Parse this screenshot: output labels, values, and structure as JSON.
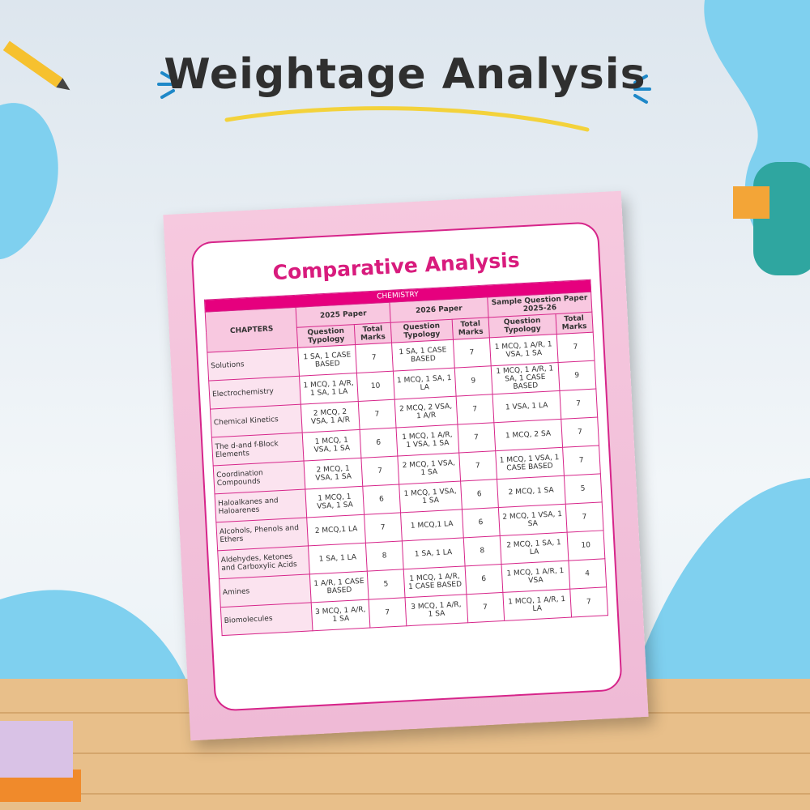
{
  "header": {
    "title": "Weightage Analysis"
  },
  "card": {
    "title": "Comparative Analysis"
  },
  "table": {
    "subject": "CHEMISTRY",
    "chapters_header": "CHAPTERS",
    "groups": [
      "2025 Paper",
      "2026 Paper",
      "Sample Question Paper 2025-26"
    ],
    "sub_headers": [
      "Question Typology",
      "Total Marks",
      "Question Typology",
      "Total Marks",
      "Question Typology",
      "Total Marks"
    ],
    "rows": [
      [
        "Solutions",
        "1 SA, 1 CASE BASED",
        7,
        "1 SA, 1 CASE BASED",
        7,
        "1 MCQ, 1 A/R, 1 VSA, 1 SA",
        7
      ],
      [
        "Electrochemistry",
        "1 MCQ, 1 A/R, 1 SA, 1 LA",
        10,
        "1 MCQ, 1 SA, 1 LA",
        9,
        "1 MCQ, 1 A/R, 1 SA, 1 CASE BASED",
        9
      ],
      [
        "Chemical Kinetics",
        "2 MCQ, 2 VSA, 1 A/R",
        7,
        "2 MCQ, 2 VSA, 1 A/R",
        7,
        "1 VSA, 1 LA",
        7
      ],
      [
        "The d-and f-Block Elements",
        "1 MCQ, 1 VSA, 1 SA",
        6,
        "1 MCQ, 1 A/R, 1 VSA, 1 SA",
        7,
        "1 MCQ, 2 SA",
        7
      ],
      [
        "Coordination Compounds",
        "2 MCQ, 1 VSA, 1 SA",
        7,
        "2 MCQ, 1 VSA, 1 SA",
        7,
        "1 MCQ, 1 VSA, 1 CASE BASED",
        7
      ],
      [
        "Haloalkanes and Haloarenes",
        "1 MCQ, 1 VSA, 1 SA",
        6,
        "1 MCQ, 1 VSA, 1 SA",
        6,
        "2 MCQ, 1 SA",
        5
      ],
      [
        "Alcohols, Phenols and Ethers",
        "2 MCQ,1 LA",
        7,
        "1 MCQ,1 LA",
        6,
        "2 MCQ, 1 VSA, 1 SA",
        7
      ],
      [
        "Aldehydes, Ketones and Carboxylic Acids",
        "1 SA, 1 LA",
        8,
        "1 SA, 1 LA",
        8,
        "2 MCQ, 1 SA, 1 LA",
        10
      ],
      [
        "Amines",
        "1 A/R, 1 CASE BASED",
        5,
        "1 MCQ, 1 A/R, 1 CASE BASED",
        6,
        "1 MCQ, 1 A/R, 1 VSA",
        4
      ],
      [
        "Biomolecules",
        "3 MCQ, 1 A/R, 1 SA",
        7,
        "3 MCQ, 1 A/R, 1 SA",
        7,
        "1 MCQ, 1 A/R, 1 LA",
        7
      ]
    ]
  }
}
